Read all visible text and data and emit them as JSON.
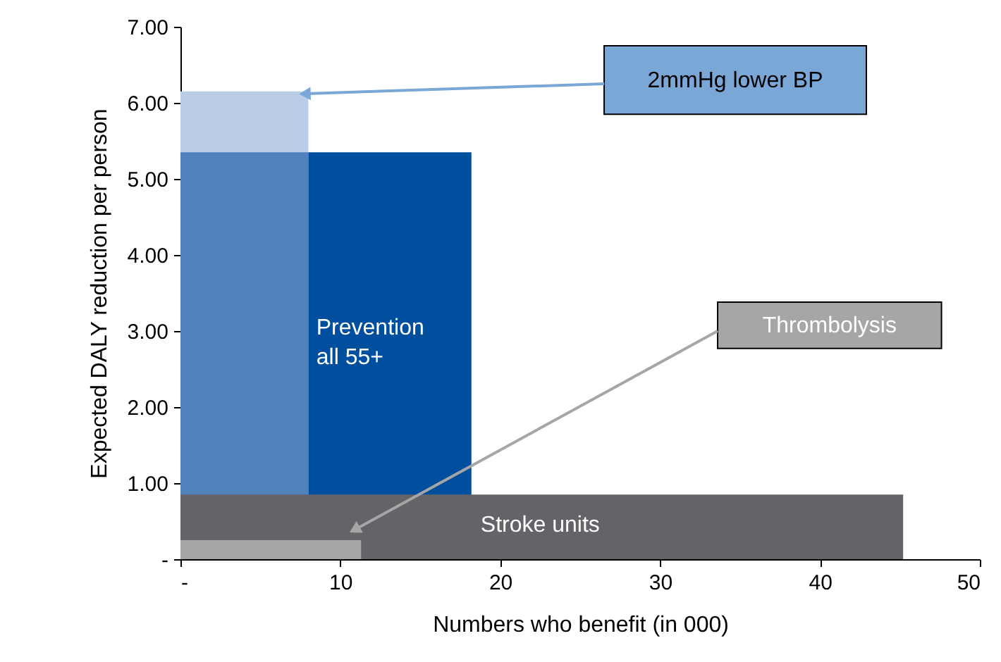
{
  "chart_data": {
    "type": "area",
    "xlabel": "Numbers who benefit (in 000)",
    "ylabel": "Expected DALY reduction per person",
    "xlim": [
      0,
      50
    ],
    "ylim": [
      0,
      7
    ],
    "xticks": [
      {
        "value": 0,
        "label": "-"
      },
      10,
      20,
      30,
      40,
      50
    ],
    "yticks": [
      {
        "value": 0,
        "label": "-"
      },
      {
        "value": 1,
        "label": "1.00"
      },
      {
        "value": 2,
        "label": "2.00"
      },
      {
        "value": 3,
        "label": "3.00"
      },
      {
        "value": 4,
        "label": "4.00"
      },
      {
        "value": 5,
        "label": "5.00"
      },
      {
        "value": 6,
        "label": "6.00"
      },
      {
        "value": 7,
        "label": "7.00"
      }
    ],
    "grid": false,
    "legend": false,
    "series": [
      {
        "name": "2mmHg lower BP",
        "color": "#b9cde5",
        "x": [
          0,
          8
        ],
        "values": [
          6.15,
          6.15
        ]
      },
      {
        "color": "#4f81bd",
        "x": [
          0,
          8
        ],
        "values": [
          5.35,
          5.35
        ]
      },
      {
        "name": "Prevention\nall 55+",
        "color": "#004f9f",
        "x": [
          8,
          18.2
        ],
        "values": [
          5.35,
          5.35
        ]
      },
      {
        "name": "Stroke units",
        "color": "#646468",
        "x": [
          0,
          45.2
        ],
        "values": [
          0.85,
          0.85
        ]
      },
      {
        "name": "Thrombolysis",
        "color": "#a6a6a6",
        "x": [
          0,
          11.3
        ],
        "values": [
          0.25,
          0.25
        ]
      }
    ]
  }
}
